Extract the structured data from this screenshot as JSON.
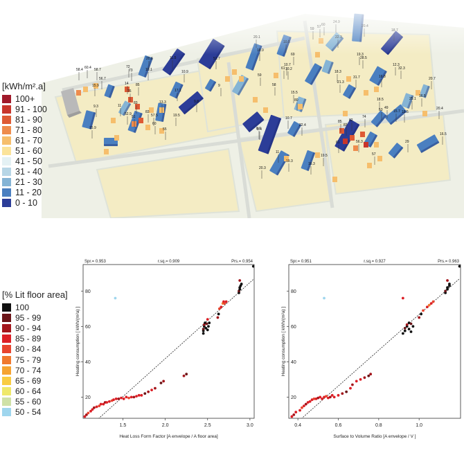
{
  "map": {
    "legend_title": "[kWh/m².a]",
    "legend": [
      {
        "label": "100+",
        "color": "#a0192a"
      },
      {
        "label": "91 - 100",
        "color": "#c8352b"
      },
      {
        "label": "81 - 90",
        "color": "#de5a34"
      },
      {
        "label": "71 - 80",
        "color": "#ee8c4d"
      },
      {
        "label": "61 - 70",
        "color": "#f6be6c"
      },
      {
        "label": "51 - 60",
        "color": "#fbe39a"
      },
      {
        "label": "41 - 50",
        "color": "#e4f1f4"
      },
      {
        "label": "31 - 40",
        "color": "#b7d6e6"
      },
      {
        "label": "21 - 30",
        "color": "#85b4d5"
      },
      {
        "label": "11 - 20",
        "color": "#4a7fc0"
      },
      {
        "label": "0 - 10",
        "color": "#2c3d98"
      }
    ],
    "building_labels": [
      "58.4",
      "60.4",
      "58.7",
      "56.7",
      "15.9",
      "9.3",
      "72",
      "73",
      "14",
      "85",
      "76",
      "10.1",
      "20.6",
      "11.5",
      "10.9",
      "83",
      "9.8",
      "17.1",
      "83",
      "51",
      "57.5",
      "60",
      "55",
      "19.5",
      "13.3",
      "15.9",
      "11",
      "52.9",
      "51.7",
      "9",
      "59",
      "61",
      "69",
      "80",
      "18.9",
      "20.1",
      "10.5",
      "58",
      "8.4",
      "10.7",
      "10.2",
      "15.5",
      "24.9",
      "59",
      "60",
      "57",
      "22.3",
      "20.4",
      "18.7",
      "19.3",
      "18.3",
      "21.3",
      "16.8",
      "15.5",
      "32.3",
      "28.5",
      "31.7",
      "12.3",
      "16.5",
      "20.7",
      "25.1",
      "18.5",
      "20.4",
      "16.5",
      "15.7",
      "10.7",
      "22.4",
      "11",
      "85",
      "83",
      "82",
      "74",
      "56.3",
      "57",
      "29",
      "53",
      "49",
      "61",
      "16.3",
      "19.3",
      "20.3",
      "19.5",
      "8.6"
    ]
  },
  "lit_legend": {
    "title": "[% Lit floor area]",
    "items": [
      {
        "label": "100",
        "color": "#111111"
      },
      {
        "label": "95 - 99",
        "color": "#6b1518"
      },
      {
        "label": "90 - 94",
        "color": "#a3161c"
      },
      {
        "label": "85 - 89",
        "color": "#dc1f26"
      },
      {
        "label": "80 - 84",
        "color": "#e8442e"
      },
      {
        "label": "75 - 79",
        "color": "#f0792e"
      },
      {
        "label": "70 - 74",
        "color": "#f5a331"
      },
      {
        "label": "65 - 69",
        "color": "#f9cc42"
      },
      {
        "label": "60 - 64",
        "color": "#efe86a"
      },
      {
        "label": "55 - 60",
        "color": "#cfe1a7"
      },
      {
        "label": "50 - 54",
        "color": "#9fd6ee"
      }
    ]
  },
  "chart_data": [
    {
      "type": "scatter",
      "xlabel": "Heat Loss Form Factor [A envelope / A floor area]",
      "ylabel": "Heating consumption [ kWh/(m²a) ]",
      "stats": {
        "spr": "Spr.= 0.953",
        "rsq": "r.sq.= 0.909",
        "prs": "Prs.= 0.954"
      },
      "xlim": [
        1.03,
        3.05
      ],
      "ylim": [
        8,
        95
      ],
      "xticks": [
        "1.5",
        "2.0",
        "2.5",
        "3.0"
      ],
      "xtick_values": [
        1.5,
        2.0,
        2.5,
        3.0
      ],
      "yticks": [
        "20",
        "40",
        "60",
        "80"
      ],
      "ytick_values": [
        20,
        40,
        60,
        80
      ],
      "trendline": [
        [
          1.1,
          3
        ],
        [
          3.05,
          87
        ]
      ],
      "points": [
        {
          "x": 1.05,
          "y": 9,
          "c": "#dc1f26"
        },
        {
          "x": 1.07,
          "y": 10,
          "c": "#a3161c"
        },
        {
          "x": 1.09,
          "y": 11,
          "c": "#e8442e"
        },
        {
          "x": 1.12,
          "y": 12,
          "c": "#dc1f26"
        },
        {
          "x": 1.14,
          "y": 13,
          "c": "#dc1f26"
        },
        {
          "x": 1.16,
          "y": 14,
          "c": "#a3161c"
        },
        {
          "x": 1.19,
          "y": 14.5,
          "c": "#dc1f26"
        },
        {
          "x": 1.22,
          "y": 15,
          "c": "#e8442e"
        },
        {
          "x": 1.24,
          "y": 16,
          "c": "#dc1f26"
        },
        {
          "x": 1.27,
          "y": 16,
          "c": "#dc1f26"
        },
        {
          "x": 1.29,
          "y": 17,
          "c": "#a3161c"
        },
        {
          "x": 1.31,
          "y": 17,
          "c": "#dc1f26"
        },
        {
          "x": 1.34,
          "y": 17.5,
          "c": "#dc1f26"
        },
        {
          "x": 1.37,
          "y": 18,
          "c": "#e8442e"
        },
        {
          "x": 1.39,
          "y": 18.5,
          "c": "#dc1f26"
        },
        {
          "x": 1.42,
          "y": 19,
          "c": "#dc1f26"
        },
        {
          "x": 1.45,
          "y": 19,
          "c": "#a3161c"
        },
        {
          "x": 1.48,
          "y": 19.5,
          "c": "#dc1f26"
        },
        {
          "x": 1.51,
          "y": 19,
          "c": "#dc1f26"
        },
        {
          "x": 1.54,
          "y": 20,
          "c": "#dc1f26"
        },
        {
          "x": 1.57,
          "y": 19.5,
          "c": "#e8442e"
        },
        {
          "x": 1.6,
          "y": 20,
          "c": "#dc1f26"
        },
        {
          "x": 1.63,
          "y": 20,
          "c": "#a3161c"
        },
        {
          "x": 1.66,
          "y": 20.5,
          "c": "#dc1f26"
        },
        {
          "x": 1.69,
          "y": 21,
          "c": "#dc1f26"
        },
        {
          "x": 1.72,
          "y": 21,
          "c": "#dc1f26"
        },
        {
          "x": 1.76,
          "y": 22,
          "c": "#6b1518"
        },
        {
          "x": 1.8,
          "y": 23,
          "c": "#a3161c"
        },
        {
          "x": 1.84,
          "y": 24,
          "c": "#dc1f26"
        },
        {
          "x": 1.88,
          "y": 25,
          "c": "#a3161c"
        },
        {
          "x": 1.95,
          "y": 28,
          "c": "#6b1518"
        },
        {
          "x": 1.98,
          "y": 29,
          "c": "#a3161c"
        },
        {
          "x": 2.22,
          "y": 32,
          "c": "#a3161c"
        },
        {
          "x": 2.25,
          "y": 33,
          "c": "#6b1518"
        },
        {
          "x": 2.45,
          "y": 56,
          "c": "#111111"
        },
        {
          "x": 2.45,
          "y": 57.5,
          "c": "#111111"
        },
        {
          "x": 2.45,
          "y": 58.5,
          "c": "#6b1518"
        },
        {
          "x": 2.46,
          "y": 60,
          "c": "#111111"
        },
        {
          "x": 2.46,
          "y": 61,
          "c": "#a3161c"
        },
        {
          "x": 2.47,
          "y": 62,
          "c": "#111111"
        },
        {
          "x": 2.48,
          "y": 59,
          "c": "#111111"
        },
        {
          "x": 2.49,
          "y": 61.5,
          "c": "#6b1518"
        },
        {
          "x": 2.5,
          "y": 58,
          "c": "#111111"
        },
        {
          "x": 2.5,
          "y": 64,
          "c": "#dc1f26"
        },
        {
          "x": 2.51,
          "y": 60,
          "c": "#111111"
        },
        {
          "x": 2.52,
          "y": 62,
          "c": "#111111"
        },
        {
          "x": 2.62,
          "y": 65,
          "c": "#a3161c"
        },
        {
          "x": 2.63,
          "y": 67,
          "c": "#111111"
        },
        {
          "x": 2.64,
          "y": 70,
          "c": "#e8442e"
        },
        {
          "x": 2.66,
          "y": 71,
          "c": "#dc1f26"
        },
        {
          "x": 2.68,
          "y": 73,
          "c": "#f0792e"
        },
        {
          "x": 2.69,
          "y": 74,
          "c": "#dc1f26"
        },
        {
          "x": 2.7,
          "y": 73,
          "c": "#e8442e"
        },
        {
          "x": 2.72,
          "y": 74,
          "c": "#dc1f26"
        },
        {
          "x": 2.87,
          "y": 79,
          "c": "#111111"
        },
        {
          "x": 2.87,
          "y": 80,
          "c": "#6b1518"
        },
        {
          "x": 2.88,
          "y": 81,
          "c": "#111111"
        },
        {
          "x": 2.88,
          "y": 82,
          "c": "#111111"
        },
        {
          "x": 2.89,
          "y": 83,
          "c": "#111111"
        },
        {
          "x": 2.9,
          "y": 84,
          "c": "#111111"
        },
        {
          "x": 2.88,
          "y": 86,
          "c": "#a3161c"
        },
        {
          "x": 3.04,
          "y": 94,
          "c": "#111111"
        },
        {
          "x": 1.41,
          "y": 76,
          "c": "#9fd6ee"
        }
      ]
    },
    {
      "type": "scatter",
      "xlabel": "Surface to Volume Ratio [A envelope / V ]",
      "ylabel": "Heating consumption [ kWh/(m²a) ]",
      "stats": {
        "spr": "Spr.= 0.951",
        "rsq": "r.sq.= 0.927",
        "prs": "Prs.= 0.963"
      },
      "xlim": [
        0.355,
        1.205
      ],
      "ylim": [
        8,
        95
      ],
      "xticks": [
        "0.4",
        "0.6",
        "0.8",
        "1.0"
      ],
      "xtick_values": [
        0.4,
        0.6,
        0.8,
        1.0
      ],
      "yticks": [
        "20",
        "40",
        "60",
        "80"
      ],
      "ytick_values": [
        20,
        40,
        60,
        80
      ],
      "trendline": [
        [
          0.37,
          3
        ],
        [
          1.2,
          87
        ]
      ],
      "points": [
        {
          "x": 0.37,
          "y": 9,
          "c": "#dc1f26"
        },
        {
          "x": 0.38,
          "y": 10,
          "c": "#a3161c"
        },
        {
          "x": 0.39,
          "y": 11.5,
          "c": "#dc1f26"
        },
        {
          "x": 0.41,
          "y": 12.5,
          "c": "#dc1f26"
        },
        {
          "x": 0.42,
          "y": 14,
          "c": "#e8442e"
        },
        {
          "x": 0.43,
          "y": 15,
          "c": "#dc1f26"
        },
        {
          "x": 0.44,
          "y": 16,
          "c": "#a3161c"
        },
        {
          "x": 0.45,
          "y": 17,
          "c": "#dc1f26"
        },
        {
          "x": 0.46,
          "y": 17.5,
          "c": "#dc1f26"
        },
        {
          "x": 0.47,
          "y": 18.5,
          "c": "#dc1f26"
        },
        {
          "x": 0.48,
          "y": 19,
          "c": "#e8442e"
        },
        {
          "x": 0.49,
          "y": 19,
          "c": "#dc1f26"
        },
        {
          "x": 0.5,
          "y": 19.5,
          "c": "#a3161c"
        },
        {
          "x": 0.51,
          "y": 20,
          "c": "#dc1f26"
        },
        {
          "x": 0.52,
          "y": 19,
          "c": "#dc1f26"
        },
        {
          "x": 0.53,
          "y": 20,
          "c": "#dc1f26"
        },
        {
          "x": 0.54,
          "y": 20.5,
          "c": "#e8442e"
        },
        {
          "x": 0.55,
          "y": 19.5,
          "c": "#dc1f26"
        },
        {
          "x": 0.56,
          "y": 20,
          "c": "#a3161c"
        },
        {
          "x": 0.57,
          "y": 21,
          "c": "#dc1f26"
        },
        {
          "x": 0.58,
          "y": 20,
          "c": "#dc1f26"
        },
        {
          "x": 0.6,
          "y": 21,
          "c": "#dc1f26"
        },
        {
          "x": 0.62,
          "y": 22,
          "c": "#a3161c"
        },
        {
          "x": 0.64,
          "y": 23,
          "c": "#6b1518"
        },
        {
          "x": 0.66,
          "y": 25,
          "c": "#dc1f26"
        },
        {
          "x": 0.67,
          "y": 27,
          "c": "#a3161c"
        },
        {
          "x": 0.69,
          "y": 29,
          "c": "#dc1f26"
        },
        {
          "x": 0.71,
          "y": 30,
          "c": "#dc1f26"
        },
        {
          "x": 0.73,
          "y": 31,
          "c": "#a3161c"
        },
        {
          "x": 0.75,
          "y": 32,
          "c": "#6b1518"
        },
        {
          "x": 0.76,
          "y": 33,
          "c": "#a3161c"
        },
        {
          "x": 0.92,
          "y": 56,
          "c": "#111111"
        },
        {
          "x": 0.93,
          "y": 57.5,
          "c": "#111111"
        },
        {
          "x": 0.93,
          "y": 59,
          "c": "#6b1518"
        },
        {
          "x": 0.94,
          "y": 60,
          "c": "#111111"
        },
        {
          "x": 0.94,
          "y": 61,
          "c": "#a3161c"
        },
        {
          "x": 0.95,
          "y": 62,
          "c": "#111111"
        },
        {
          "x": 0.95,
          "y": 58.5,
          "c": "#111111"
        },
        {
          "x": 0.96,
          "y": 61.5,
          "c": "#6b1518"
        },
        {
          "x": 0.96,
          "y": 57,
          "c": "#111111"
        },
        {
          "x": 0.97,
          "y": 60,
          "c": "#111111"
        },
        {
          "x": 0.92,
          "y": 76,
          "c": "#dc1f26"
        },
        {
          "x": 1.0,
          "y": 65,
          "c": "#a3161c"
        },
        {
          "x": 1.01,
          "y": 67,
          "c": "#111111"
        },
        {
          "x": 1.02,
          "y": 69,
          "c": "#e8442e"
        },
        {
          "x": 1.04,
          "y": 71,
          "c": "#dc1f26"
        },
        {
          "x": 1.05,
          "y": 72,
          "c": "#f0792e"
        },
        {
          "x": 1.06,
          "y": 73,
          "c": "#dc1f26"
        },
        {
          "x": 1.07,
          "y": 74,
          "c": "#e8442e"
        },
        {
          "x": 1.13,
          "y": 79,
          "c": "#111111"
        },
        {
          "x": 1.13,
          "y": 80,
          "c": "#6b1518"
        },
        {
          "x": 1.14,
          "y": 81,
          "c": "#111111"
        },
        {
          "x": 1.14,
          "y": 82,
          "c": "#111111"
        },
        {
          "x": 1.15,
          "y": 83,
          "c": "#111111"
        },
        {
          "x": 1.15,
          "y": 84,
          "c": "#111111"
        },
        {
          "x": 1.14,
          "y": 86,
          "c": "#a3161c"
        },
        {
          "x": 1.2,
          "y": 94,
          "c": "#111111"
        },
        {
          "x": 0.53,
          "y": 76,
          "c": "#9fd6ee"
        }
      ]
    }
  ]
}
